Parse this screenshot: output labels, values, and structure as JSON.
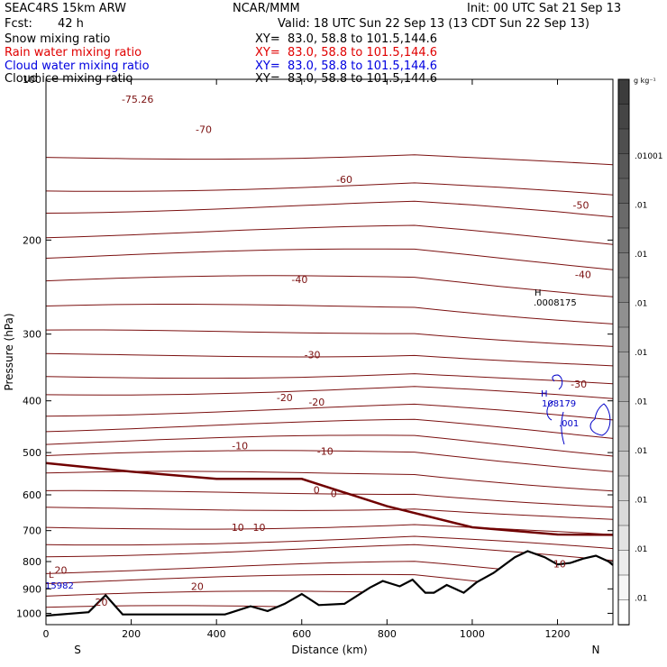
{
  "header": {
    "model": "SEAC4RS 15km ARW",
    "org": "NCAR/MMM",
    "init": "Init: 00 UTC Sat 21 Sep 13",
    "fcst_label": "Fcst:",
    "fcst_value": "42 h",
    "valid": "Valid: 18 UTC Sun 22 Sep 13 (13 CDT Sun 22 Sep 13)",
    "fields": [
      {
        "name": "Snow mixing ratio",
        "xy": "XY=  83.0, 58.8 to 101.5,144.6",
        "color": "#000000"
      },
      {
        "name": "Rain water mixing ratio",
        "xy": "XY=  83.0, 58.8 to 101.5,144.6",
        "color": "#e00000"
      },
      {
        "name": "Cloud water mixing ratio",
        "xy": "XY=  83.0, 58.8 to 101.5,144.6",
        "color": "#0000e0"
      },
      {
        "name": "Cloud ice mixing ratio",
        "xy": "XY=  83.0, 58.8 to 101.5,144.6",
        "color": "#000000"
      }
    ]
  },
  "colorbar": {
    "unit": "g kg⁻¹",
    "labels": [
      ".01001",
      ".01",
      ".01",
      ".01",
      ".01",
      ".01",
      ".01",
      ".01",
      ".01",
      ".01"
    ]
  },
  "annotations": {
    "high1_letter": "H",
    "high1_value": ".0008175",
    "high2_letter": "H",
    "high2_value": "108179",
    "cloud_value": ".001",
    "low_letter": "L",
    "low_value": "15982"
  },
  "chart_data": {
    "type": "contour",
    "xlabel": "Distance (km)",
    "ylabel": "Pressure (hPa)",
    "xlim": [
      0,
      1330
    ],
    "ylim": [
      1050,
      100
    ],
    "y_scale": "log",
    "x_ticks": [
      "0",
      "200",
      "400",
      "600",
      "800",
      "1000",
      "1200"
    ],
    "x_tick_values": [
      0,
      200,
      400,
      600,
      800,
      1000,
      1200
    ],
    "y_ticks": [
      "100",
      "200",
      "300",
      "400",
      "500",
      "600",
      "700",
      "800",
      "900",
      "1000"
    ],
    "y_tick_values": [
      100,
      200,
      300,
      400,
      500,
      600,
      700,
      800,
      900,
      1000
    ],
    "end_labels": {
      "left": "S",
      "right": "N"
    },
    "contour_color": "#7b1010",
    "freezing_level_color": "#700000",
    "terrain_color": "#000000",
    "contour_labels": [
      {
        "text": "-75.26",
        "x": 215,
        "p": 109
      },
      {
        "text": "-70",
        "x": 370,
        "p": 124
      },
      {
        "text": "-60",
        "x": 700,
        "p": 154
      },
      {
        "text": "-50",
        "x": 1255,
        "p": 172
      },
      {
        "text": "-40",
        "x": 595,
        "p": 237
      },
      {
        "text": "-40",
        "x": 1260,
        "p": 232
      },
      {
        "text": "-30",
        "x": 625,
        "p": 328
      },
      {
        "text": "-30",
        "x": 1250,
        "p": 372
      },
      {
        "text": "-20",
        "x": 560,
        "p": 394
      },
      {
        "text": "-20",
        "x": 635,
        "p": 402
      },
      {
        "text": "-10",
        "x": 455,
        "p": 485
      },
      {
        "text": "-10",
        "x": 655,
        "p": 497
      },
      {
        "text": "0",
        "x": 635,
        "p": 587
      },
      {
        "text": "0",
        "x": 675,
        "p": 597
      },
      {
        "text": "10",
        "x": 450,
        "p": 690
      },
      {
        "text": "10",
        "x": 500,
        "p": 690
      },
      {
        "text": "20",
        "x": 35,
        "p": 830
      },
      {
        "text": "20",
        "x": 355,
        "p": 890
      },
      {
        "text": "20",
        "x": 130,
        "p": 952
      },
      {
        "text": "10",
        "x": 1205,
        "p": 808
      }
    ],
    "isotherms_p": [
      140,
      160,
      175,
      195,
      215,
      240,
      270,
      300,
      330,
      360,
      385,
      420,
      450,
      480,
      510,
      555,
      600,
      640,
      690,
      735,
      770,
      830,
      875,
      935,
      990
    ],
    "freezing_level": [
      [
        0,
        523
      ],
      [
        200,
        543
      ],
      [
        400,
        560
      ],
      [
        600,
        560
      ],
      [
        800,
        630
      ],
      [
        1000,
        690
      ],
      [
        1200,
        712
      ],
      [
        1330,
        713
      ]
    ],
    "terrain": [
      [
        0,
        1010
      ],
      [
        100,
        995
      ],
      [
        140,
        925
      ],
      [
        180,
        1005
      ],
      [
        420,
        1005
      ],
      [
        480,
        970
      ],
      [
        520,
        990
      ],
      [
        560,
        960
      ],
      [
        600,
        920
      ],
      [
        640,
        965
      ],
      [
        700,
        960
      ],
      [
        760,
        895
      ],
      [
        790,
        870
      ],
      [
        830,
        890
      ],
      [
        860,
        865
      ],
      [
        890,
        915
      ],
      [
        910,
        915
      ],
      [
        940,
        885
      ],
      [
        960,
        900
      ],
      [
        980,
        915
      ],
      [
        1010,
        875
      ],
      [
        1050,
        840
      ],
      [
        1100,
        785
      ],
      [
        1130,
        765
      ],
      [
        1170,
        785
      ],
      [
        1200,
        810
      ],
      [
        1230,
        805
      ],
      [
        1260,
        790
      ],
      [
        1290,
        780
      ],
      [
        1320,
        800
      ],
      [
        1330,
        812
      ]
    ]
  }
}
